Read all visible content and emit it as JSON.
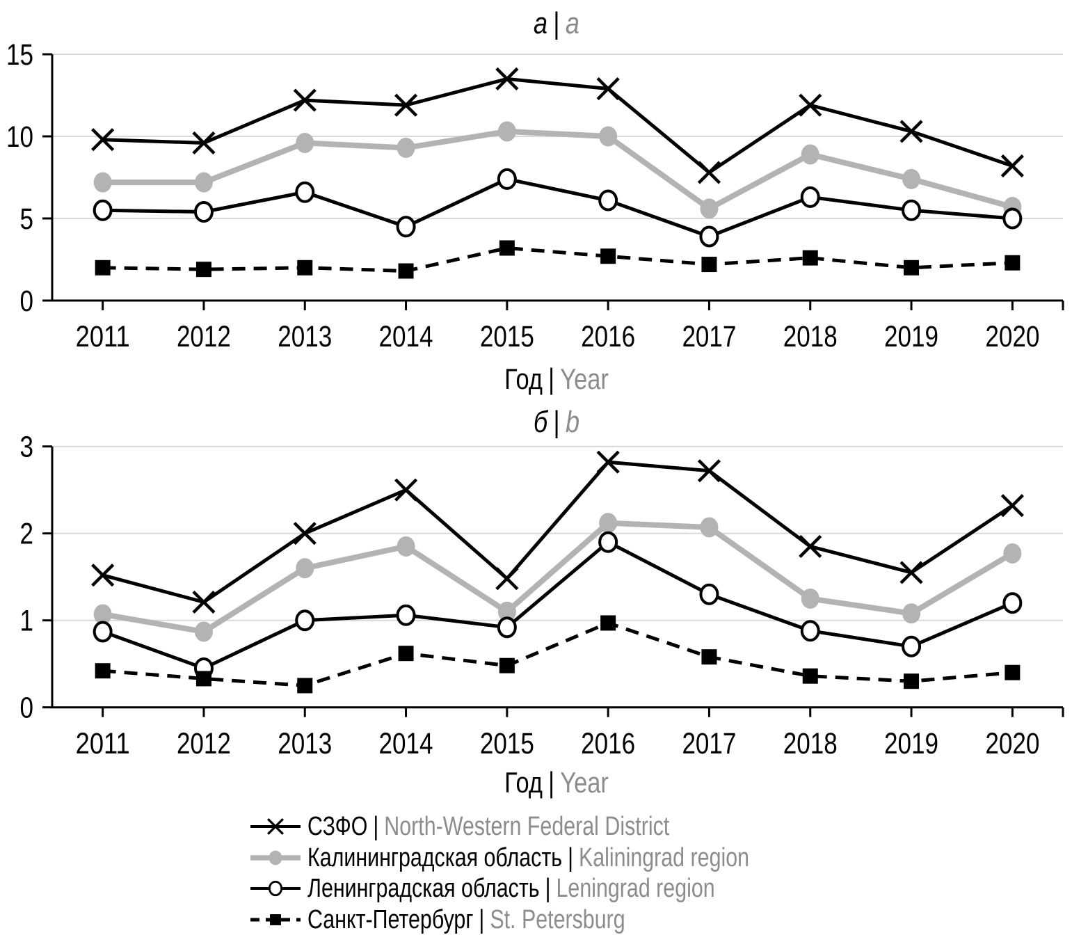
{
  "separator": "|",
  "colors": {
    "background": "#ffffff",
    "axis": "#000000",
    "gridline": "#d9d9d9",
    "series_black": "#000000",
    "series_gray": "#b3b3b3",
    "secondary_text_gray": "#8c8c8c"
  },
  "chart_data": [
    {
      "type": "line",
      "panel_label": {
        "ru": "а",
        "en": "a"
      },
      "xlabel": {
        "ru": "Год",
        "en": "Year"
      },
      "categories": [
        "2011",
        "2012",
        "2013",
        "2014",
        "2015",
        "2016",
        "2017",
        "2018",
        "2019",
        "2020"
      ],
      "ylim": [
        0,
        15
      ],
      "yticks": [
        0,
        5,
        10,
        15
      ],
      "grid": true,
      "legend_position": "bottom-left",
      "series": [
        {
          "name_ru": "СЗФО",
          "name_en": "North-Western Federal District",
          "marker": "cross",
          "color": "#000000",
          "dash": false,
          "width": 5,
          "values": [
            9.8,
            9.6,
            12.2,
            11.9,
            13.5,
            12.9,
            7.8,
            11.9,
            10.3,
            8.2
          ]
        },
        {
          "name_ru": "Калининградская область",
          "name_en": "Kaliningrad region",
          "marker": "circle-filled",
          "color": "#b3b3b3",
          "dash": false,
          "width": 8,
          "values": [
            7.2,
            7.2,
            9.6,
            9.3,
            10.3,
            10.0,
            5.6,
            8.9,
            7.4,
            5.7
          ]
        },
        {
          "name_ru": "Ленинградская область",
          "name_en": "Leningrad region",
          "marker": "circle-open",
          "color": "#000000",
          "dash": false,
          "width": 5,
          "values": [
            5.5,
            5.4,
            6.6,
            4.5,
            7.4,
            6.1,
            3.9,
            6.3,
            5.5,
            5.0
          ]
        },
        {
          "name_ru": "Санкт-Петербург",
          "name_en": "St. Petersburg",
          "marker": "square-filled",
          "color": "#000000",
          "dash": true,
          "width": 5,
          "values": [
            2.0,
            1.9,
            2.0,
            1.8,
            3.2,
            2.7,
            2.2,
            2.6,
            2.0,
            2.3
          ]
        }
      ]
    },
    {
      "type": "line",
      "panel_label": {
        "ru": "б",
        "en": "b"
      },
      "xlabel": {
        "ru": "Год",
        "en": "Year"
      },
      "categories": [
        "2011",
        "2012",
        "2013",
        "2014",
        "2015",
        "2016",
        "2017",
        "2018",
        "2019",
        "2020"
      ],
      "ylim": [
        0,
        3
      ],
      "yticks": [
        0,
        1,
        2,
        3
      ],
      "grid": true,
      "legend_position": "bottom-left",
      "series": [
        {
          "name_ru": "СЗФО",
          "name_en": "North-Western Federal District",
          "marker": "cross",
          "color": "#000000",
          "dash": false,
          "width": 5,
          "values": [
            1.52,
            1.21,
            2.0,
            2.5,
            1.48,
            2.82,
            2.72,
            1.85,
            1.55,
            2.32
          ]
        },
        {
          "name_ru": "Калининградская область",
          "name_en": "Kaliningrad region",
          "marker": "circle-filled",
          "color": "#b3b3b3",
          "dash": false,
          "width": 8,
          "values": [
            1.07,
            0.87,
            1.6,
            1.85,
            1.1,
            2.12,
            2.07,
            1.25,
            1.08,
            1.77
          ]
        },
        {
          "name_ru": "Ленинградская область",
          "name_en": "Leningrad region",
          "marker": "circle-open",
          "color": "#000000",
          "dash": false,
          "width": 5,
          "values": [
            0.87,
            0.45,
            1.0,
            1.06,
            0.92,
            1.9,
            1.3,
            0.88,
            0.7,
            1.2
          ]
        },
        {
          "name_ru": "Санкт-Петербург",
          "name_en": "St. Petersburg",
          "marker": "square-filled",
          "color": "#000000",
          "dash": true,
          "width": 5,
          "values": [
            0.42,
            0.33,
            0.25,
            0.62,
            0.48,
            0.97,
            0.58,
            0.36,
            0.3,
            0.4
          ]
        }
      ]
    }
  ]
}
